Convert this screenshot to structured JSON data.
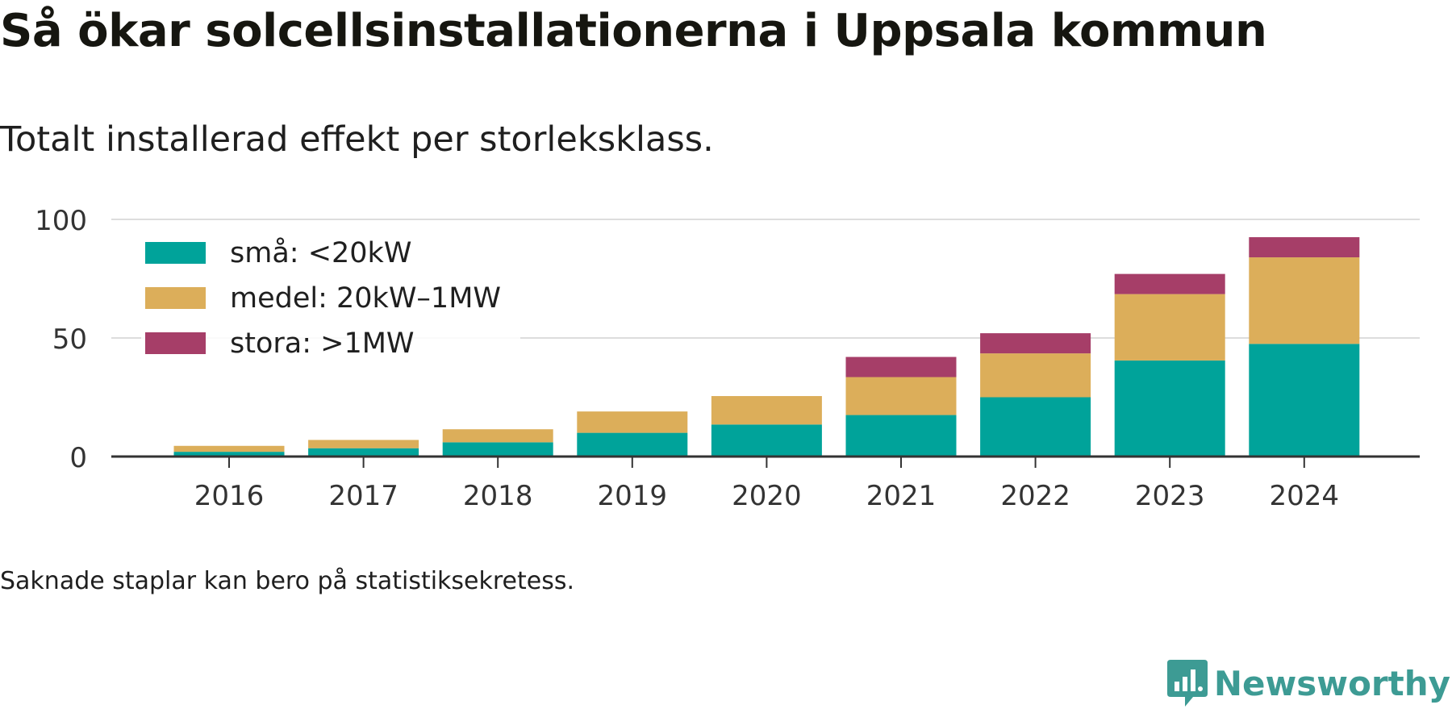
{
  "header": {
    "title": "Så ökar solcellsinstallationerna i Uppsala kommun",
    "subtitle": "Totalt installerad effekt per storleksklass."
  },
  "footer": {
    "note": "Saknade staplar kan bero på statistiksekretess.",
    "brand": "Newsworthy",
    "brand_color": "#3d9b94"
  },
  "chart_data": {
    "type": "bar",
    "stacked": true,
    "categories": [
      "2016",
      "2017",
      "2018",
      "2019",
      "2020",
      "2021",
      "2022",
      "2023",
      "2024"
    ],
    "series": [
      {
        "name": "små: <20kW",
        "color": "#00a39a",
        "values": [
          2,
          3.5,
          6,
          10,
          13.5,
          17.5,
          25,
          40.5,
          47.5
        ]
      },
      {
        "name": "medel: 20kW–1MW",
        "color": "#dcae5a",
        "values": [
          2.5,
          3.5,
          5.5,
          9,
          12,
          16,
          18.5,
          28,
          36.5
        ]
      },
      {
        "name": "stora: >1MW",
        "color": "#a63e68",
        "values": [
          0,
          0,
          0,
          0,
          0,
          8.5,
          8.5,
          8.5,
          8.5
        ]
      }
    ],
    "yticks": [
      0,
      50,
      100
    ],
    "ylim": [
      0,
      100
    ],
    "grid": true,
    "legend_position": "top-left",
    "xlabel": "",
    "ylabel": ""
  }
}
